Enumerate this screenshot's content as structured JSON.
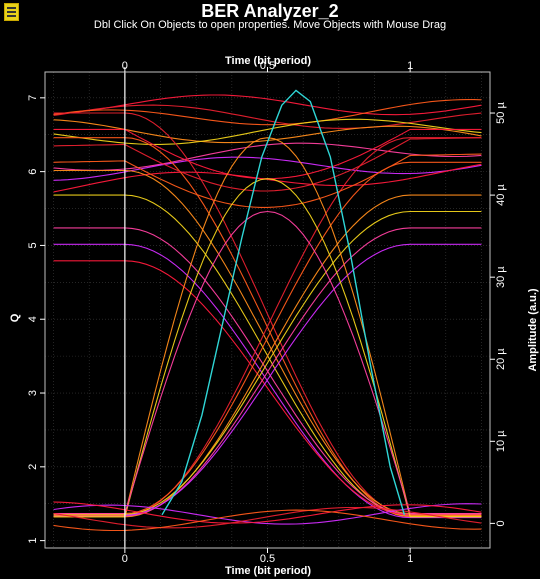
{
  "window": {
    "title": "BER Analyzer_2",
    "hint": "Dbl Click On Objects to open properties.  Move Objects with Mouse Drag"
  },
  "colors": {
    "background": "#000000",
    "grid": "#3c3c3c",
    "axis": "#ffffff",
    "eye_traces": [
      "#ff1a3c",
      "#e8202f",
      "#ff5a1a",
      "#ff8c1a",
      "#f0d21a",
      "#ff3fa0",
      "#d22cff"
    ],
    "q_curve": "#2fd6d6"
  },
  "chart_data": {
    "type": "line",
    "top_axis_label": "Time (bit period)",
    "bottom_axis_label": "Time (bit period)",
    "left_axis_label": "Q",
    "right_axis_label": "Amplitude (a.u.)",
    "x_range": [
      -0.28,
      1.28
    ],
    "x_ticks": [
      {
        "value": 0,
        "label": "0"
      },
      {
        "value": 0.5,
        "label": "0.5"
      },
      {
        "value": 1,
        "label": "1"
      }
    ],
    "q_range": [
      0.9,
      7.35
    ],
    "q_ticks": [
      {
        "value": 1,
        "label": "1"
      },
      {
        "value": 2,
        "label": "2"
      },
      {
        "value": 3,
        "label": "3"
      },
      {
        "value": 4,
        "label": "4"
      },
      {
        "value": 5,
        "label": "5"
      },
      {
        "value": 6,
        "label": "6"
      },
      {
        "value": 7,
        "label": "7"
      }
    ],
    "amplitude_range": [
      -3,
      55
    ],
    "amplitude_ticks": [
      {
        "value": 0,
        "label": "0"
      },
      {
        "value": 10,
        "label": "10 µ"
      },
      {
        "value": 20,
        "label": "20 µ"
      },
      {
        "value": 30,
        "label": "30 µ"
      },
      {
        "value": 40,
        "label": "40 µ"
      },
      {
        "value": 50,
        "label": "50 µ"
      }
    ],
    "grid": true,
    "q_factor_curve": {
      "axis": "Q",
      "x": [
        0.13,
        0.2,
        0.27,
        0.34,
        0.41,
        0.48,
        0.55,
        0.6,
        0.65,
        0.72,
        0.79,
        0.86,
        0.93,
        0.98
      ],
      "y": [
        1.35,
        1.8,
        2.7,
        3.9,
        5.1,
        6.2,
        6.9,
        7.1,
        6.95,
        6.2,
        4.9,
        3.4,
        2.0,
        1.35
      ]
    },
    "eye_diagram": {
      "axis": "Amplitude (a.u.)",
      "description_levels": {
        "one_level_min": 38,
        "one_level_max": 51,
        "zero_level_min": 0.5,
        "zero_level_max": 1.5
      },
      "traces": [
        {
          "start": 51,
          "end": 51,
          "shape": "flat"
        },
        {
          "start": 50,
          "end": 49,
          "shape": "flat"
        },
        {
          "start": 49,
          "end": 50.5,
          "shape": "flat"
        },
        {
          "start": 48,
          "end": 47,
          "shape": "flat"
        },
        {
          "start": 47,
          "end": 48.5,
          "shape": "flat"
        },
        {
          "start": 44,
          "end": 46,
          "shape": "flat"
        },
        {
          "start": 43,
          "end": 44,
          "shape": "flat"
        },
        {
          "start": 41,
          "end": 43,
          "shape": "flat"
        },
        {
          "start": 50,
          "end": 1,
          "shape": "fall"
        },
        {
          "start": 47,
          "end": 0.8,
          "shape": "fall"
        },
        {
          "start": 43,
          "end": 1.2,
          "shape": "fall"
        },
        {
          "start": 40,
          "end": 0.9,
          "shape": "fall"
        },
        {
          "start": 36,
          "end": 1.1,
          "shape": "fall"
        },
        {
          "start": 34,
          "end": 0.7,
          "shape": "fall"
        },
        {
          "start": 32,
          "end": 1.0,
          "shape": "fall"
        },
        {
          "start": 1,
          "end": 47,
          "shape": "rise"
        },
        {
          "start": 1.2,
          "end": 44,
          "shape": "rise"
        },
        {
          "start": 0.8,
          "end": 40,
          "shape": "rise"
        },
        {
          "start": 1.1,
          "end": 38,
          "shape": "rise"
        },
        {
          "start": 0.9,
          "end": 36,
          "shape": "rise"
        },
        {
          "start": 1.0,
          "end": 34,
          "shape": "rise"
        },
        {
          "start": 48,
          "end": 48,
          "shape": "dip"
        },
        {
          "start": 46,
          "end": 47,
          "shape": "dip"
        },
        {
          "start": 44,
          "end": 45,
          "shape": "dip"
        },
        {
          "start": 1,
          "end": 1,
          "shape": "hump",
          "peak": 47
        },
        {
          "start": 0.8,
          "end": 1.1,
          "shape": "hump",
          "peak": 42
        },
        {
          "start": 1.2,
          "end": 0.9,
          "shape": "hump",
          "peak": 38
        },
        {
          "start": 1,
          "end": 1.2,
          "shape": "flat"
        },
        {
          "start": 1.4,
          "end": 1.0,
          "shape": "flat"
        },
        {
          "start": 0.6,
          "end": 0.8,
          "shape": "flat"
        },
        {
          "start": 0.3,
          "end": 0.5,
          "shape": "flat"
        }
      ]
    }
  }
}
